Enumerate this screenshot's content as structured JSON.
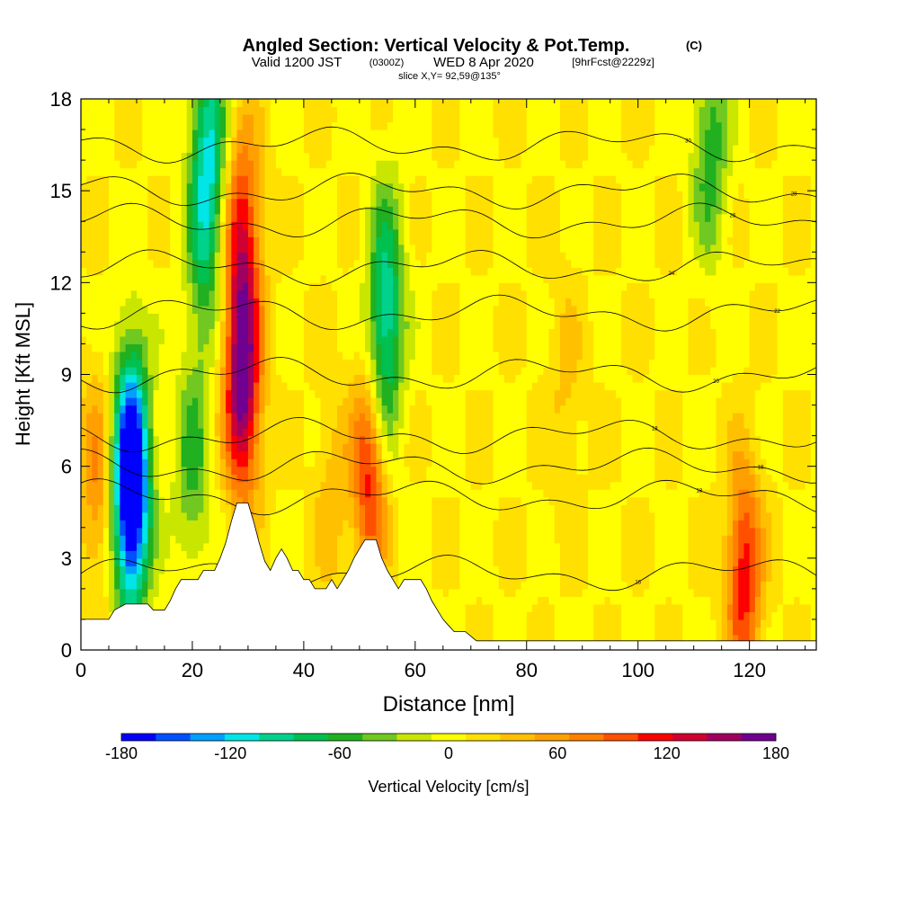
{
  "chart_data": {
    "type": "heatmap",
    "title": "Angled Section: Vertical Velocity & Pot.Temp.",
    "title_unit": "(C)",
    "subtitle_valid": "Valid 1200 JST",
    "subtitle_utc": "(0300Z)",
    "subtitle_date": "WED 8 Apr 2020",
    "subtitle_fcst": "[9hrFcst@2229z]",
    "subtitle_slice": "slice X,Y= 92,59@135°",
    "xlabel": "Distance [nm]",
    "ylabel": "Height [Kft MSL]",
    "xlim": [
      0,
      132
    ],
    "ylim": [
      0,
      18
    ],
    "xticks": [
      "0",
      "20",
      "40",
      "60",
      "80",
      "100",
      "120"
    ],
    "yticks": [
      "0",
      "3",
      "6",
      "9",
      "12",
      "15",
      "18"
    ],
    "colorbar": {
      "label": "Vertical Velocity [cm/s]",
      "ticks": [
        "-180",
        "-120",
        "-60",
        "0",
        "60",
        "120",
        "180"
      ],
      "range": [
        -180,
        180
      ],
      "colors": [
        "#0000ff",
        "#0050ff",
        "#00a0ff",
        "#00e6e6",
        "#00d28c",
        "#00c050",
        "#20b020",
        "#70c820",
        "#c8e600",
        "#ffff00",
        "#ffe000",
        "#ffc000",
        "#ffa000",
        "#ff8000",
        "#ff5000",
        "#ff0000",
        "#d00030",
        "#a00060",
        "#700090"
      ]
    },
    "velocity_features": [
      {
        "x": 9,
        "z": 4.5,
        "value": -170
      },
      {
        "x": 9,
        "z": 7.0,
        "value": -110
      },
      {
        "x": 22,
        "z": 13.0,
        "value": -60
      },
      {
        "x": 23,
        "z": 16.5,
        "value": -100
      },
      {
        "x": 20,
        "z": 6.0,
        "value": -60
      },
      {
        "x": 29,
        "z": 8.5,
        "value": 160
      },
      {
        "x": 29,
        "z": 13.5,
        "value": 110
      },
      {
        "x": 52,
        "z": 6.0,
        "value": 120
      },
      {
        "x": 55,
        "z": 12.0,
        "value": -70
      },
      {
        "x": 54,
        "z": 9.0,
        "value": -80
      },
      {
        "x": 3,
        "z": 5.5,
        "value": 60
      },
      {
        "x": 45,
        "z": 5.0,
        "value": 30
      },
      {
        "x": 113,
        "z": 16.5,
        "value": -70
      },
      {
        "x": 119,
        "z": 2.5,
        "value": 110
      },
      {
        "x": 87,
        "z": 8.5,
        "value": 25
      }
    ],
    "theta_contours": [
      {
        "label": "16",
        "z": 2.5
      },
      {
        "label": "18",
        "z": 5.0
      },
      {
        "label": "18",
        "z": 6.0
      },
      {
        "label": "18",
        "z": 7.0
      },
      {
        "label": "20",
        "z": 9.0
      },
      {
        "label": "22",
        "z": 11.0
      },
      {
        "label": "24",
        "z": 12.5
      },
      {
        "label": "26",
        "z": 14.0
      },
      {
        "label": "28",
        "z": 15.0
      },
      {
        "label": "30",
        "z": 16.5
      }
    ],
    "terrain": [
      [
        0,
        1.0
      ],
      [
        5,
        1.0
      ],
      [
        6,
        1.3
      ],
      [
        8,
        1.5
      ],
      [
        12,
        1.5
      ],
      [
        13,
        1.3
      ],
      [
        15,
        1.3
      ],
      [
        16,
        1.6
      ],
      [
        17,
        2.0
      ],
      [
        18,
        2.3
      ],
      [
        21,
        2.3
      ],
      [
        22,
        2.6
      ],
      [
        24,
        2.6
      ],
      [
        25,
        3.0
      ],
      [
        26,
        3.5
      ],
      [
        27,
        4.2
      ],
      [
        28,
        4.8
      ],
      [
        30,
        4.8
      ],
      [
        31,
        4.2
      ],
      [
        32,
        3.5
      ],
      [
        33,
        2.9
      ],
      [
        34,
        2.6
      ],
      [
        35,
        3.0
      ],
      [
        36,
        3.3
      ],
      [
        37,
        3.0
      ],
      [
        38,
        2.6
      ],
      [
        39,
        2.6
      ],
      [
        40,
        2.3
      ],
      [
        41,
        2.3
      ],
      [
        42,
        2.0
      ],
      [
        44,
        2.0
      ],
      [
        45,
        2.3
      ],
      [
        46,
        2.0
      ],
      [
        47,
        2.3
      ],
      [
        48,
        2.6
      ],
      [
        49,
        3.0
      ],
      [
        50,
        3.3
      ],
      [
        51,
        3.6
      ],
      [
        53,
        3.6
      ],
      [
        54,
        3.0
      ],
      [
        55,
        2.6
      ],
      [
        56,
        2.3
      ],
      [
        57,
        2.0
      ],
      [
        58,
        2.3
      ],
      [
        61,
        2.3
      ],
      [
        62,
        2.0
      ],
      [
        63,
        1.6
      ],
      [
        64,
        1.3
      ],
      [
        65,
        1.0
      ],
      [
        66,
        0.8
      ],
      [
        67,
        0.6
      ],
      [
        69,
        0.6
      ],
      [
        71,
        0.3
      ],
      [
        132,
        0.3
      ]
    ]
  }
}
